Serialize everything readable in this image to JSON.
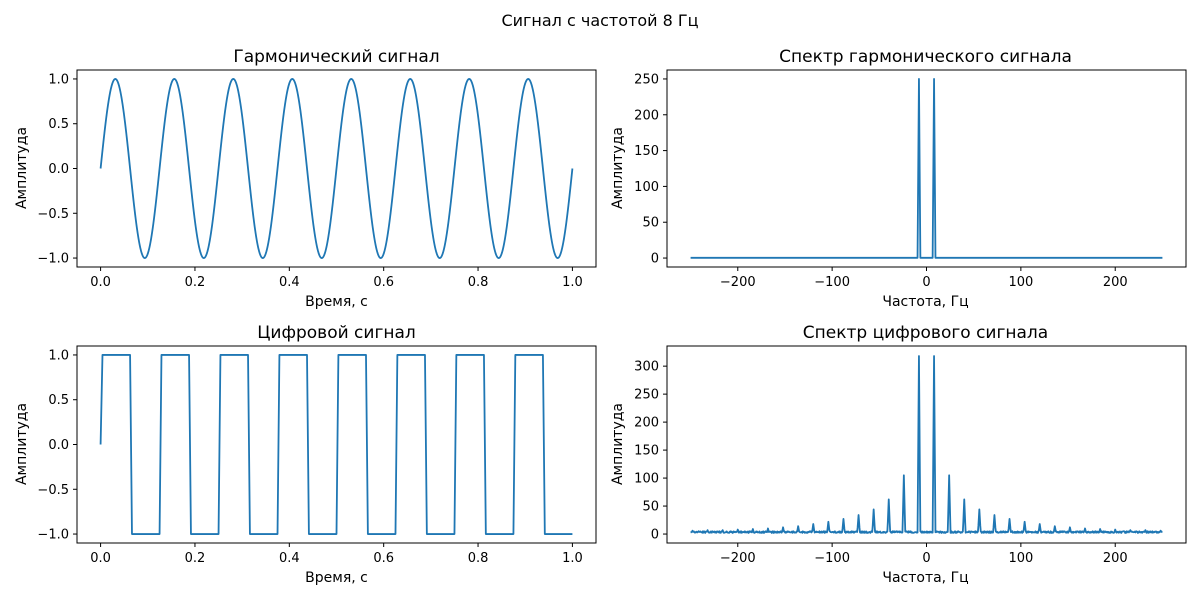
{
  "suptitle": "Сигнал с частотой 8 Гц",
  "chart_data": [
    {
      "type": "line",
      "title": "Гармонический сигнал",
      "xlabel": "Время, с",
      "ylabel": "Амплитуда",
      "xlim": [
        -0.05,
        1.05
      ],
      "ylim": [
        -1.1,
        1.1
      ],
      "xticks": [
        0.0,
        0.2,
        0.4,
        0.6,
        0.8,
        1.0
      ],
      "xtick_labels": [
        "0.0",
        "0.2",
        "0.4",
        "0.6",
        "0.8",
        "1.0"
      ],
      "yticks": [
        -1.0,
        -0.5,
        0.0,
        0.5,
        1.0
      ],
      "ytick_labels": [
        "−1.0",
        "−0.5",
        "0.0",
        "0.5",
        "1.0"
      ],
      "signal": {
        "kind": "sine",
        "frequency_hz": 8,
        "amplitude": 1,
        "t_start": 0,
        "t_end": 1
      },
      "grid": false,
      "color": "#1f77b4"
    },
    {
      "type": "line",
      "title": "Спектр гармонического сигнала",
      "xlabel": "Частота, Гц",
      "ylabel": "Амплитуда",
      "xlim": [
        -275,
        275
      ],
      "ylim": [
        -12.5,
        262.5
      ],
      "xticks": [
        -200,
        -100,
        0,
        100,
        200
      ],
      "xtick_labels": [
        "−200",
        "−100",
        "0",
        "100",
        "200"
      ],
      "yticks": [
        0,
        50,
        100,
        150,
        200,
        250
      ],
      "ytick_labels": [
        "0",
        "50",
        "100",
        "150",
        "200",
        "250"
      ],
      "spectrum": {
        "f_min": -250,
        "f_max": 250,
        "baseline": 0.3,
        "peaks": [
          {
            "f": -8,
            "amp": 250
          },
          {
            "f": 8,
            "amp": 250
          }
        ]
      },
      "grid": false,
      "color": "#1f77b4"
    },
    {
      "type": "line",
      "title": "Цифровой сигнал",
      "xlabel": "Время, с",
      "ylabel": "Амплитуда",
      "xlim": [
        -0.05,
        1.05
      ],
      "ylim": [
        -1.1,
        1.1
      ],
      "xticks": [
        0.0,
        0.2,
        0.4,
        0.6,
        0.8,
        1.0
      ],
      "xtick_labels": [
        "0.0",
        "0.2",
        "0.4",
        "0.6",
        "0.8",
        "1.0"
      ],
      "yticks": [
        -1.0,
        -0.5,
        0.0,
        0.5,
        1.0
      ],
      "ytick_labels": [
        "−1.0",
        "−0.5",
        "0.0",
        "0.5",
        "1.0"
      ],
      "signal": {
        "kind": "square",
        "frequency_hz": 8,
        "amplitude": 1,
        "t_start": 0,
        "t_end": 1
      },
      "grid": false,
      "color": "#1f77b4"
    },
    {
      "type": "line",
      "title": "Спектр цифрового сигнала",
      "xlabel": "Частота, Гц",
      "ylabel": "Амплитуда",
      "xlim": [
        -275,
        275
      ],
      "ylim": [
        -16,
        336
      ],
      "xticks": [
        -200,
        -100,
        0,
        100,
        200
      ],
      "xtick_labels": [
        "−200",
        "−100",
        "0",
        "100",
        "200"
      ],
      "yticks": [
        0,
        50,
        100,
        150,
        200,
        250,
        300
      ],
      "ytick_labels": [
        "0",
        "50",
        "100",
        "150",
        "200",
        "250",
        "300"
      ],
      "spectrum": {
        "f_min": -250,
        "f_max": 250,
        "baseline": 2,
        "noise": 3,
        "peaks": [
          {
            "f": -248,
            "amp": 6
          },
          {
            "f": -232,
            "amp": 7
          },
          {
            "f": -216,
            "amp": 7
          },
          {
            "f": -200,
            "amp": 8
          },
          {
            "f": -184,
            "amp": 9
          },
          {
            "f": -168,
            "amp": 10
          },
          {
            "f": -152,
            "amp": 12
          },
          {
            "f": -136,
            "amp": 14
          },
          {
            "f": -120,
            "amp": 18
          },
          {
            "f": -104,
            "amp": 22
          },
          {
            "f": -88,
            "amp": 27
          },
          {
            "f": -72,
            "amp": 34
          },
          {
            "f": -56,
            "amp": 44
          },
          {
            "f": -40,
            "amp": 62
          },
          {
            "f": -24,
            "amp": 105
          },
          {
            "f": -8,
            "amp": 318
          },
          {
            "f": 8,
            "amp": 318
          },
          {
            "f": 24,
            "amp": 105
          },
          {
            "f": 40,
            "amp": 62
          },
          {
            "f": 56,
            "amp": 44
          },
          {
            "f": 72,
            "amp": 34
          },
          {
            "f": 88,
            "amp": 27
          },
          {
            "f": 104,
            "amp": 22
          },
          {
            "f": 120,
            "amp": 18
          },
          {
            "f": 136,
            "amp": 14
          },
          {
            "f": 152,
            "amp": 12
          },
          {
            "f": 168,
            "amp": 10
          },
          {
            "f": 184,
            "amp": 9
          },
          {
            "f": 200,
            "amp": 8
          },
          {
            "f": 216,
            "amp": 7
          },
          {
            "f": 232,
            "amp": 7
          },
          {
            "f": 248,
            "amp": 6
          }
        ]
      },
      "grid": false,
      "color": "#1f77b4"
    }
  ]
}
